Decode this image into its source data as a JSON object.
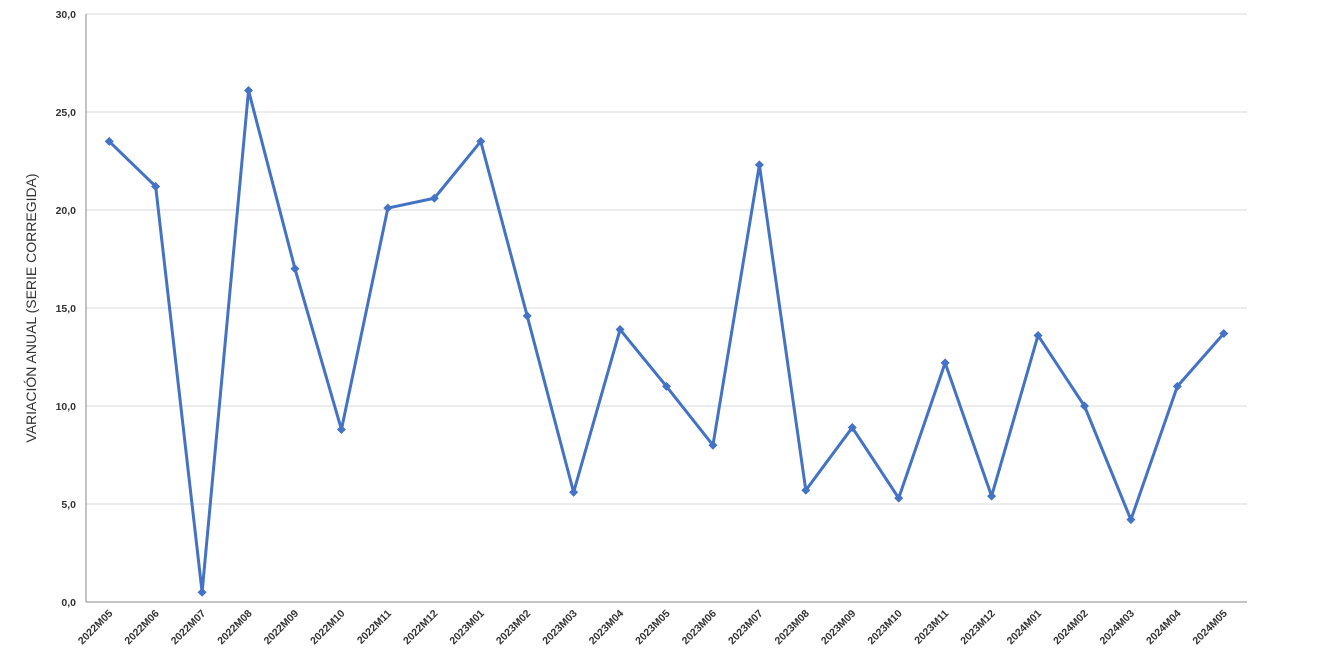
{
  "chart_data": {
    "type": "line",
    "y_label": "VARIACIÓN ANUAL (SERIE CORREGIDA)",
    "categories": [
      "2022M05",
      "2022M06",
      "2022M07",
      "2022M08",
      "2022M09",
      "2022M10",
      "2022M11",
      "2022M12",
      "2023M01",
      "2023M02",
      "2023M03",
      "2023M04",
      "2023M05",
      "2023M06",
      "2023M07",
      "2023M08",
      "2023M09",
      "2023M10",
      "2023M11",
      "2023M12",
      "2024M01",
      "2024M02",
      "2024M03",
      "2024M04",
      "2024M05"
    ],
    "values": [
      23.5,
      21.2,
      0.5,
      26.1,
      17.0,
      8.8,
      20.1,
      20.6,
      23.5,
      14.6,
      5.6,
      13.9,
      11.0,
      8.0,
      22.3,
      5.7,
      8.9,
      5.3,
      12.2,
      5.4,
      13.6,
      10.0,
      4.2,
      11.0,
      13.7
    ],
    "color": "#4472c4",
    "ylim": [
      0,
      30
    ],
    "yticks": [
      {
        "value": 0,
        "label": "0,0"
      },
      {
        "value": 5,
        "label": "5,0"
      },
      {
        "value": 10,
        "label": "10,0"
      },
      {
        "value": 15,
        "label": "15,0"
      },
      {
        "value": 20,
        "label": "20,0"
      },
      {
        "value": 25,
        "label": "25,0"
      },
      {
        "value": 30,
        "label": "30,0"
      }
    ],
    "grid": true
  }
}
